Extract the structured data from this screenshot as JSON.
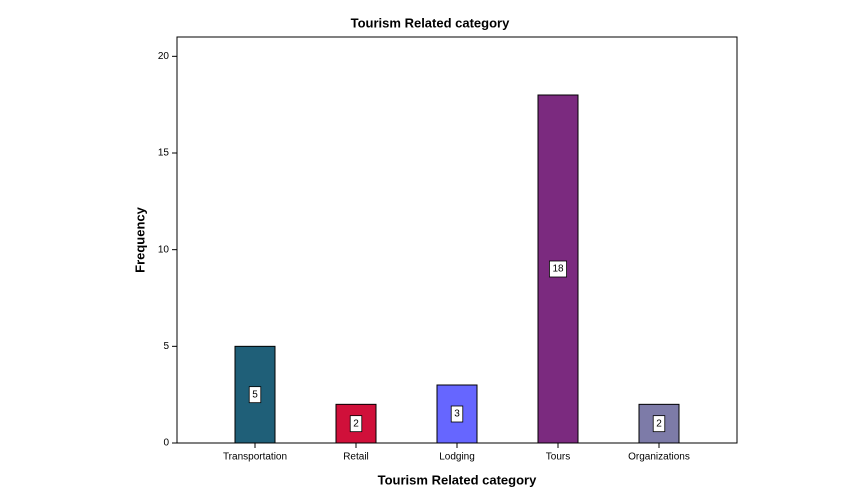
{
  "chart_data": {
    "type": "bar",
    "title": "Tourism Related category",
    "x_label": "Tourism Related category",
    "y_label": "Frequency",
    "categories": [
      "Transportation",
      "Retail",
      "Lodging",
      "Tours",
      "Organizations"
    ],
    "values": [
      5,
      2,
      3,
      18,
      2
    ],
    "colors": [
      "#1f5f78",
      "#d0103a",
      "#6666ff",
      "#7b2a7f",
      "#7d7ba8"
    ],
    "ylim": [
      0,
      21
    ],
    "yticks": [
      0,
      5,
      10,
      15,
      20
    ],
    "grid": false,
    "data_labels": true
  }
}
